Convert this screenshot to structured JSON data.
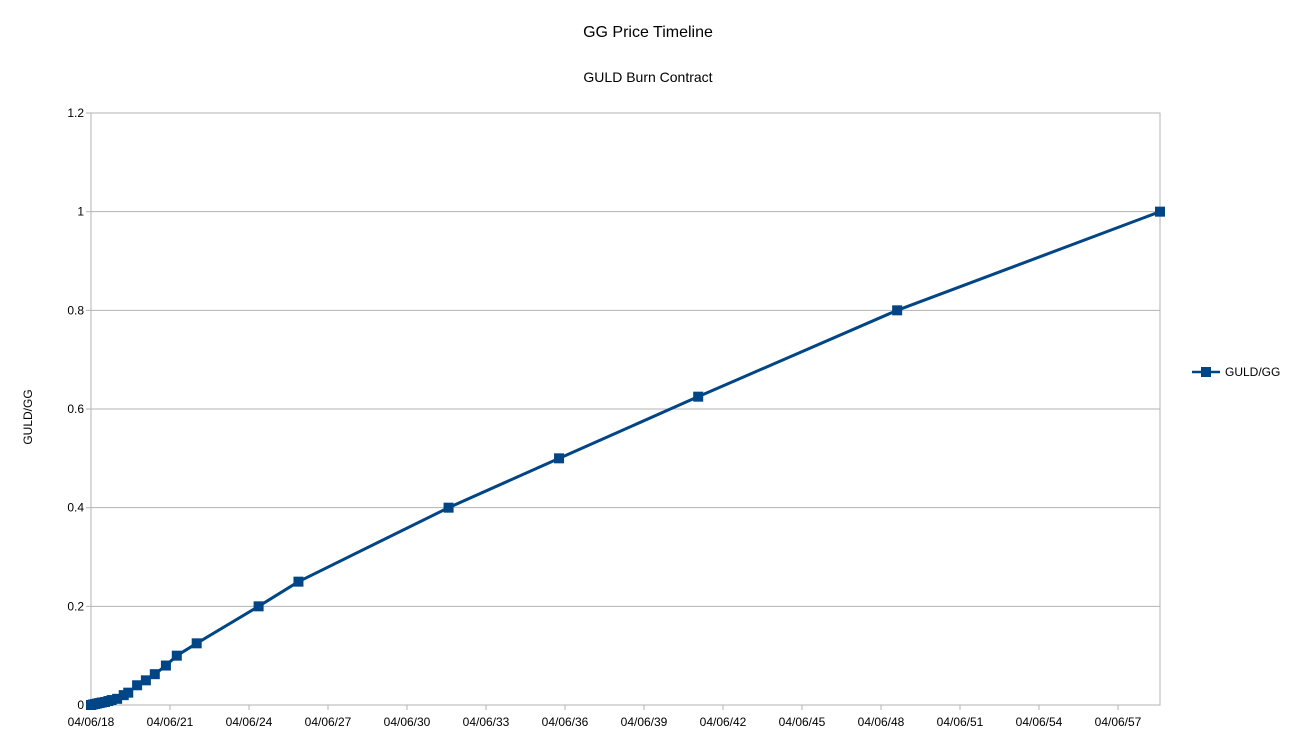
{
  "chart_data": {
    "type": "line",
    "title": "GG Price Timeline",
    "subtitle": "GULD Burn Contract",
    "xlabel": "",
    "ylabel": "GULD/GG",
    "x_tick_labels": [
      "04/06/18",
      "04/06/21",
      "04/06/24",
      "04/06/27",
      "04/06/30",
      "04/06/33",
      "04/06/36",
      "04/06/39",
      "04/06/42",
      "04/06/45",
      "04/06/48",
      "04/06/51",
      "04/06/54",
      "04/06/57"
    ],
    "y_tick_labels": [
      "0",
      "0.2",
      "0.4",
      "0.6",
      "0.8",
      "1",
      "1.2"
    ],
    "xlim": [
      "2018-04-06",
      "2058-08-01"
    ],
    "ylim": [
      0,
      1.2
    ],
    "grid": "horizontal",
    "legend_position": "right",
    "series": [
      {
        "name": "GULD/GG",
        "color": "#004586",
        "marker": "square",
        "points": [
          {
            "x": "2018-04-06",
            "y": 0.0
          },
          {
            "x": "2018-05-01",
            "y": 0.001
          },
          {
            "x": "2018-06-01",
            "y": 0.002
          },
          {
            "x": "2018-07-01",
            "y": 0.003
          },
          {
            "x": "2018-08-01",
            "y": 0.004
          },
          {
            "x": "2018-09-01",
            "y": 0.005
          },
          {
            "x": "2018-10-15",
            "y": 0.006
          },
          {
            "x": "2018-12-01",
            "y": 0.008
          },
          {
            "x": "2019-01-15",
            "y": 0.01
          },
          {
            "x": "2019-04-01",
            "y": 0.0125
          },
          {
            "x": "2019-07-01",
            "y": 0.02
          },
          {
            "x": "2019-09-01",
            "y": 0.025
          },
          {
            "x": "2020-01-01",
            "y": 0.04
          },
          {
            "x": "2020-05-01",
            "y": 0.05
          },
          {
            "x": "2020-09-01",
            "y": 0.0625
          },
          {
            "x": "2021-02-01",
            "y": 0.08
          },
          {
            "x": "2021-07-01",
            "y": 0.1
          },
          {
            "x": "2022-04-01",
            "y": 0.125
          },
          {
            "x": "2024-08-01",
            "y": 0.2
          },
          {
            "x": "2026-02-01",
            "y": 0.25
          },
          {
            "x": "2031-10-01",
            "y": 0.4
          },
          {
            "x": "2035-12-01",
            "y": 0.5
          },
          {
            "x": "2041-03-01",
            "y": 0.625
          },
          {
            "x": "2048-09-01",
            "y": 0.8
          },
          {
            "x": "2058-08-01",
            "y": 1.0
          }
        ]
      }
    ]
  }
}
